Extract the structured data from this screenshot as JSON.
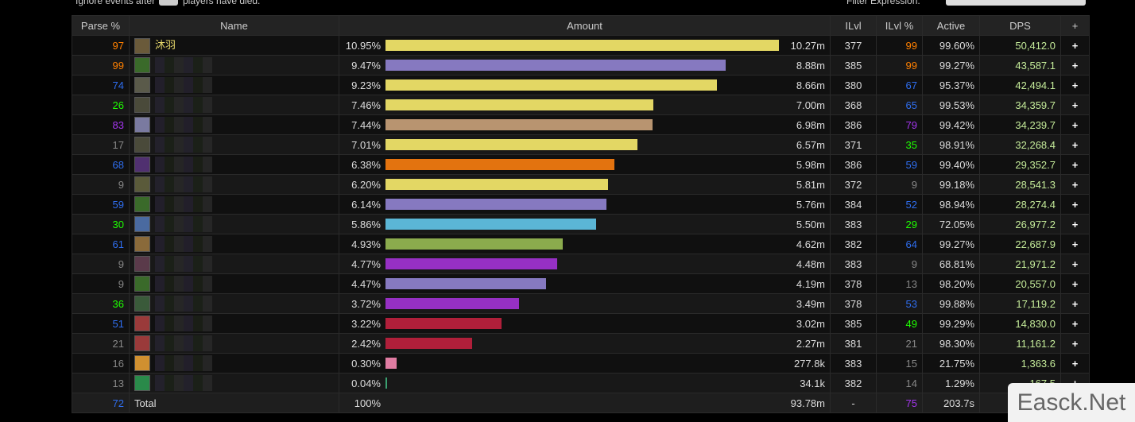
{
  "top_bar": {
    "ignore_before": "Ignore events after",
    "ignore_after": "players have died.",
    "filter_label": "Filter Expression:"
  },
  "table": {
    "headers": [
      "Parse %",
      "Name",
      "Amount",
      "ILvl",
      "ILvl %",
      "Active",
      "DPS",
      "+"
    ],
    "rows": [
      {
        "parse": 97,
        "name": "沐羽",
        "pct": "10.95%",
        "amount": "10.27m",
        "ilvl": 377,
        "ilvl_pct": 99,
        "active": "99.60%",
        "dps": "50,412.0",
        "plus": "+",
        "color": "#e3d764"
      },
      {
        "parse": 99,
        "pct": "9.47%",
        "amount": "8.88m",
        "ilvl": 385,
        "ilvl_pct": 99,
        "active": "99.27%",
        "dps": "43,587.1",
        "plus": "+",
        "color": "#8679c0"
      },
      {
        "parse": 74,
        "pct": "9.23%",
        "amount": "8.66m",
        "ilvl": 380,
        "ilvl_pct": 67,
        "active": "95.37%",
        "dps": "42,494.1",
        "plus": "+",
        "color": "#e3d764"
      },
      {
        "parse": 26,
        "pct": "7.46%",
        "amount": "7.00m",
        "ilvl": 368,
        "ilvl_pct": 65,
        "active": "99.53%",
        "dps": "34,359.7",
        "plus": "+",
        "color": "#e3d764"
      },
      {
        "parse": 83,
        "pct": "7.44%",
        "amount": "6.98m",
        "ilvl": 386,
        "ilvl_pct": 79,
        "active": "99.42%",
        "dps": "34,239.7",
        "plus": "+",
        "color": "#b89470"
      },
      {
        "parse": 17,
        "pct": "7.01%",
        "amount": "6.57m",
        "ilvl": 371,
        "ilvl_pct": 35,
        "active": "98.91%",
        "dps": "32,268.4",
        "plus": "+",
        "color": "#e3d764"
      },
      {
        "parse": 68,
        "pct": "6.38%",
        "amount": "5.98m",
        "ilvl": 386,
        "ilvl_pct": 59,
        "active": "99.40%",
        "dps": "29,352.7",
        "plus": "+",
        "color": "#e3730f"
      },
      {
        "parse": 9,
        "pct": "6.20%",
        "amount": "5.81m",
        "ilvl": 372,
        "ilvl_pct": 9,
        "active": "99.18%",
        "dps": "28,541.3",
        "plus": "+",
        "color": "#e3d764"
      },
      {
        "parse": 59,
        "pct": "6.14%",
        "amount": "5.76m",
        "ilvl": 384,
        "ilvl_pct": 52,
        "active": "98.94%",
        "dps": "28,274.4",
        "plus": "+",
        "color": "#8679c0"
      },
      {
        "parse": 30,
        "pct": "5.86%",
        "amount": "5.50m",
        "ilvl": 383,
        "ilvl_pct": 29,
        "active": "72.05%",
        "dps": "26,977.2",
        "plus": "+",
        "color": "#5bb6d6"
      },
      {
        "parse": 61,
        "pct": "4.93%",
        "amount": "4.62m",
        "ilvl": 382,
        "ilvl_pct": 64,
        "active": "99.27%",
        "dps": "22,687.9",
        "plus": "+",
        "color": "#8bab4d"
      },
      {
        "parse": 9,
        "pct": "4.77%",
        "amount": "4.48m",
        "ilvl": 383,
        "ilvl_pct": 9,
        "active": "68.81%",
        "dps": "21,971.2",
        "plus": "+",
        "color": "#9630c4"
      },
      {
        "parse": 9,
        "pct": "4.47%",
        "amount": "4.19m",
        "ilvl": 378,
        "ilvl_pct": 13,
        "active": "98.20%",
        "dps": "20,557.0",
        "plus": "+",
        "color": "#8679c0"
      },
      {
        "parse": 36,
        "pct": "3.72%",
        "amount": "3.49m",
        "ilvl": 378,
        "ilvl_pct": 53,
        "active": "99.88%",
        "dps": "17,119.2",
        "plus": "+",
        "color": "#9630c4"
      },
      {
        "parse": 51,
        "pct": "3.22%",
        "amount": "3.02m",
        "ilvl": 385,
        "ilvl_pct": 49,
        "active": "99.29%",
        "dps": "14,830.0",
        "plus": "+",
        "color": "#b01f3a"
      },
      {
        "parse": 21,
        "pct": "2.42%",
        "amount": "2.27m",
        "ilvl": 381,
        "ilvl_pct": 21,
        "active": "98.30%",
        "dps": "11,161.2",
        "plus": "+",
        "color": "#b01f3a"
      },
      {
        "parse": 16,
        "pct": "0.30%",
        "amount": "277.8k",
        "ilvl": 383,
        "ilvl_pct": 15,
        "active": "21.75%",
        "dps": "1,363.6",
        "plus": "+",
        "color": "#e07ca2"
      },
      {
        "parse": 13,
        "pct": "0.04%",
        "amount": "34.1k",
        "ilvl": 382,
        "ilvl_pct": 14,
        "active": "1.29%",
        "dps": "167.5",
        "plus": "+",
        "color": "#3aa070"
      }
    ],
    "total": {
      "parse": 72,
      "name": "Total",
      "pct": "100%",
      "amount": "93.78m",
      "ilvl": "-",
      "ilvl_pct": 75,
      "active": "203.7s"
    }
  },
  "watermark": "Easck.Net"
}
